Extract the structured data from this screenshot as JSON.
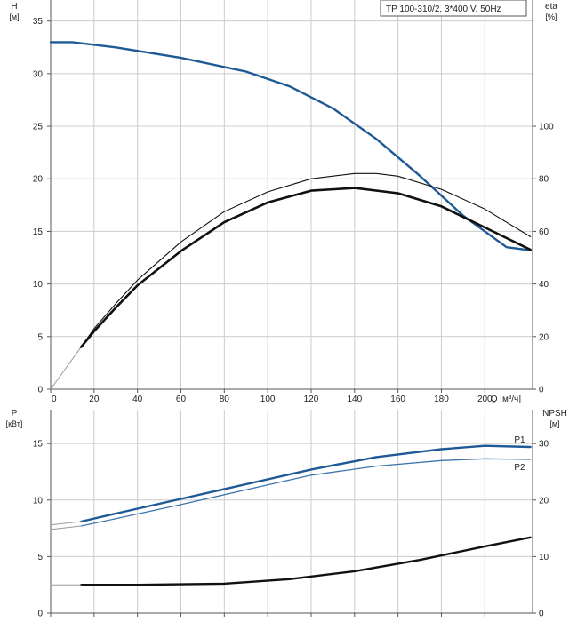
{
  "colors": {
    "blue": "#1f5a96",
    "blue_light": "#3c74ad",
    "black": "#111111",
    "grid": "#cccccc",
    "axis": "#555555"
  },
  "chart_data": [
    {
      "type": "line",
      "name": "top",
      "legend": "TP 100-310/2, 3*400 V, 50Hz",
      "left_axis": {
        "label_line1": "H",
        "label_line2": "[м]",
        "range": [
          0,
          37
        ],
        "ticks": [
          0,
          5,
          10,
          15,
          20,
          25,
          30,
          35
        ]
      },
      "right_axis": {
        "label_line1": "eta",
        "label_line2": "[%]",
        "range": [
          0,
          148
        ],
        "ticks": [
          0,
          20,
          40,
          60,
          80,
          100
        ]
      },
      "x_axis": {
        "label": "Q [м³/ч]",
        "range": [
          0,
          222
        ],
        "ticks": [
          0,
          20,
          40,
          60,
          80,
          100,
          120,
          140,
          160,
          180,
          200
        ]
      },
      "grid": true,
      "series": [
        {
          "axis": "left",
          "color": "blue",
          "width": 2.4,
          "points": [
            [
              0,
              33
            ],
            [
              10,
              33
            ],
            [
              30,
              32.5
            ],
            [
              60,
              31.5
            ],
            [
              90,
              30.2
            ],
            [
              110,
              28.8
            ],
            [
              130,
              26.7
            ],
            [
              150,
              23.8
            ],
            [
              170,
              20.3
            ],
            [
              190,
              16.5
            ],
            [
              210,
              13.5
            ],
            [
              221,
              13.2
            ]
          ]
        },
        {
          "axis": "left",
          "color": "grey",
          "width": 1,
          "points": [
            [
              0,
              0
            ],
            [
              14,
              4
            ]
          ]
        },
        {
          "axis": "right",
          "color": "black",
          "width": 2.6,
          "points": [
            [
              14,
              16
            ],
            [
              20,
              22
            ],
            [
              30,
              31
            ],
            [
              40,
              39.5
            ],
            [
              60,
              52.5
            ],
            [
              80,
              63.5
            ],
            [
              100,
              71
            ],
            [
              120,
              75.5
            ],
            [
              140,
              76.5
            ],
            [
              160,
              74.5
            ],
            [
              180,
              69.5
            ],
            [
              200,
              61.5
            ],
            [
              221,
              53
            ]
          ]
        },
        {
          "axis": "right",
          "color": "black",
          "width": 1.1,
          "points": [
            [
              14,
              16
            ],
            [
              20,
              23
            ],
            [
              30,
              32.5
            ],
            [
              40,
              41.5
            ],
            [
              60,
              56
            ],
            [
              80,
              67.5
            ],
            [
              100,
              75
            ],
            [
              120,
              80
            ],
            [
              140,
              82
            ],
            [
              150,
              82
            ],
            [
              160,
              81
            ],
            [
              180,
              76
            ],
            [
              200,
              68.5
            ],
            [
              221,
              58
            ]
          ]
        }
      ]
    },
    {
      "type": "line",
      "name": "bottom",
      "left_axis": {
        "label_line1": "P",
        "label_line2": "[кВт]",
        "range": [
          0,
          18
        ],
        "ticks": [
          0,
          5,
          10,
          15
        ]
      },
      "right_axis": {
        "label_line1": "NPSH",
        "label_line2": "[м]",
        "range": [
          0,
          36
        ],
        "ticks": [
          0,
          10,
          20,
          30
        ]
      },
      "x_axis": {
        "range": [
          0,
          222
        ],
        "ticks": [
          0,
          20,
          40,
          60,
          80,
          100,
          120,
          140,
          160,
          180,
          200
        ]
      },
      "grid": true,
      "series": [
        {
          "axis": "left",
          "label": "P1",
          "color": "blue",
          "width": 2.4,
          "points": [
            [
              14,
              8.1
            ],
            [
              30,
              8.8
            ],
            [
              60,
              10.1
            ],
            [
              90,
              11.4
            ],
            [
              120,
              12.7
            ],
            [
              150,
              13.8
            ],
            [
              180,
              14.5
            ],
            [
              200,
              14.8
            ],
            [
              221,
              14.7
            ]
          ]
        },
        {
          "axis": "left",
          "label": "P2",
          "color": "blue_light",
          "width": 1.3,
          "points": [
            [
              14,
              7.7
            ],
            [
              30,
              8.35
            ],
            [
              60,
              9.6
            ],
            [
              90,
              10.9
            ],
            [
              120,
              12.2
            ],
            [
              150,
              13
            ],
            [
              180,
              13.5
            ],
            [
              200,
              13.65
            ],
            [
              221,
              13.6
            ]
          ]
        },
        {
          "axis": "left",
          "color": "black",
          "width": 2.4,
          "points": [
            [
              14,
              2.5
            ],
            [
              40,
              2.5
            ],
            [
              80,
              2.6
            ],
            [
              110,
              3
            ],
            [
              140,
              3.7
            ],
            [
              170,
              4.7
            ],
            [
              200,
              5.9
            ],
            [
              221,
              6.7
            ]
          ]
        },
        {
          "axis": "left",
          "color": "grey",
          "width": 1,
          "points": [
            [
              0,
              7.8
            ],
            [
              14,
              8.1
            ]
          ]
        },
        {
          "axis": "left",
          "color": "grey",
          "width": 1,
          "points": [
            [
              0,
              7.4
            ],
            [
              14,
              7.7
            ]
          ]
        },
        {
          "axis": "left",
          "color": "grey",
          "width": 1,
          "points": [
            [
              0,
              2.5
            ],
            [
              14,
              2.5
            ]
          ]
        }
      ]
    }
  ]
}
